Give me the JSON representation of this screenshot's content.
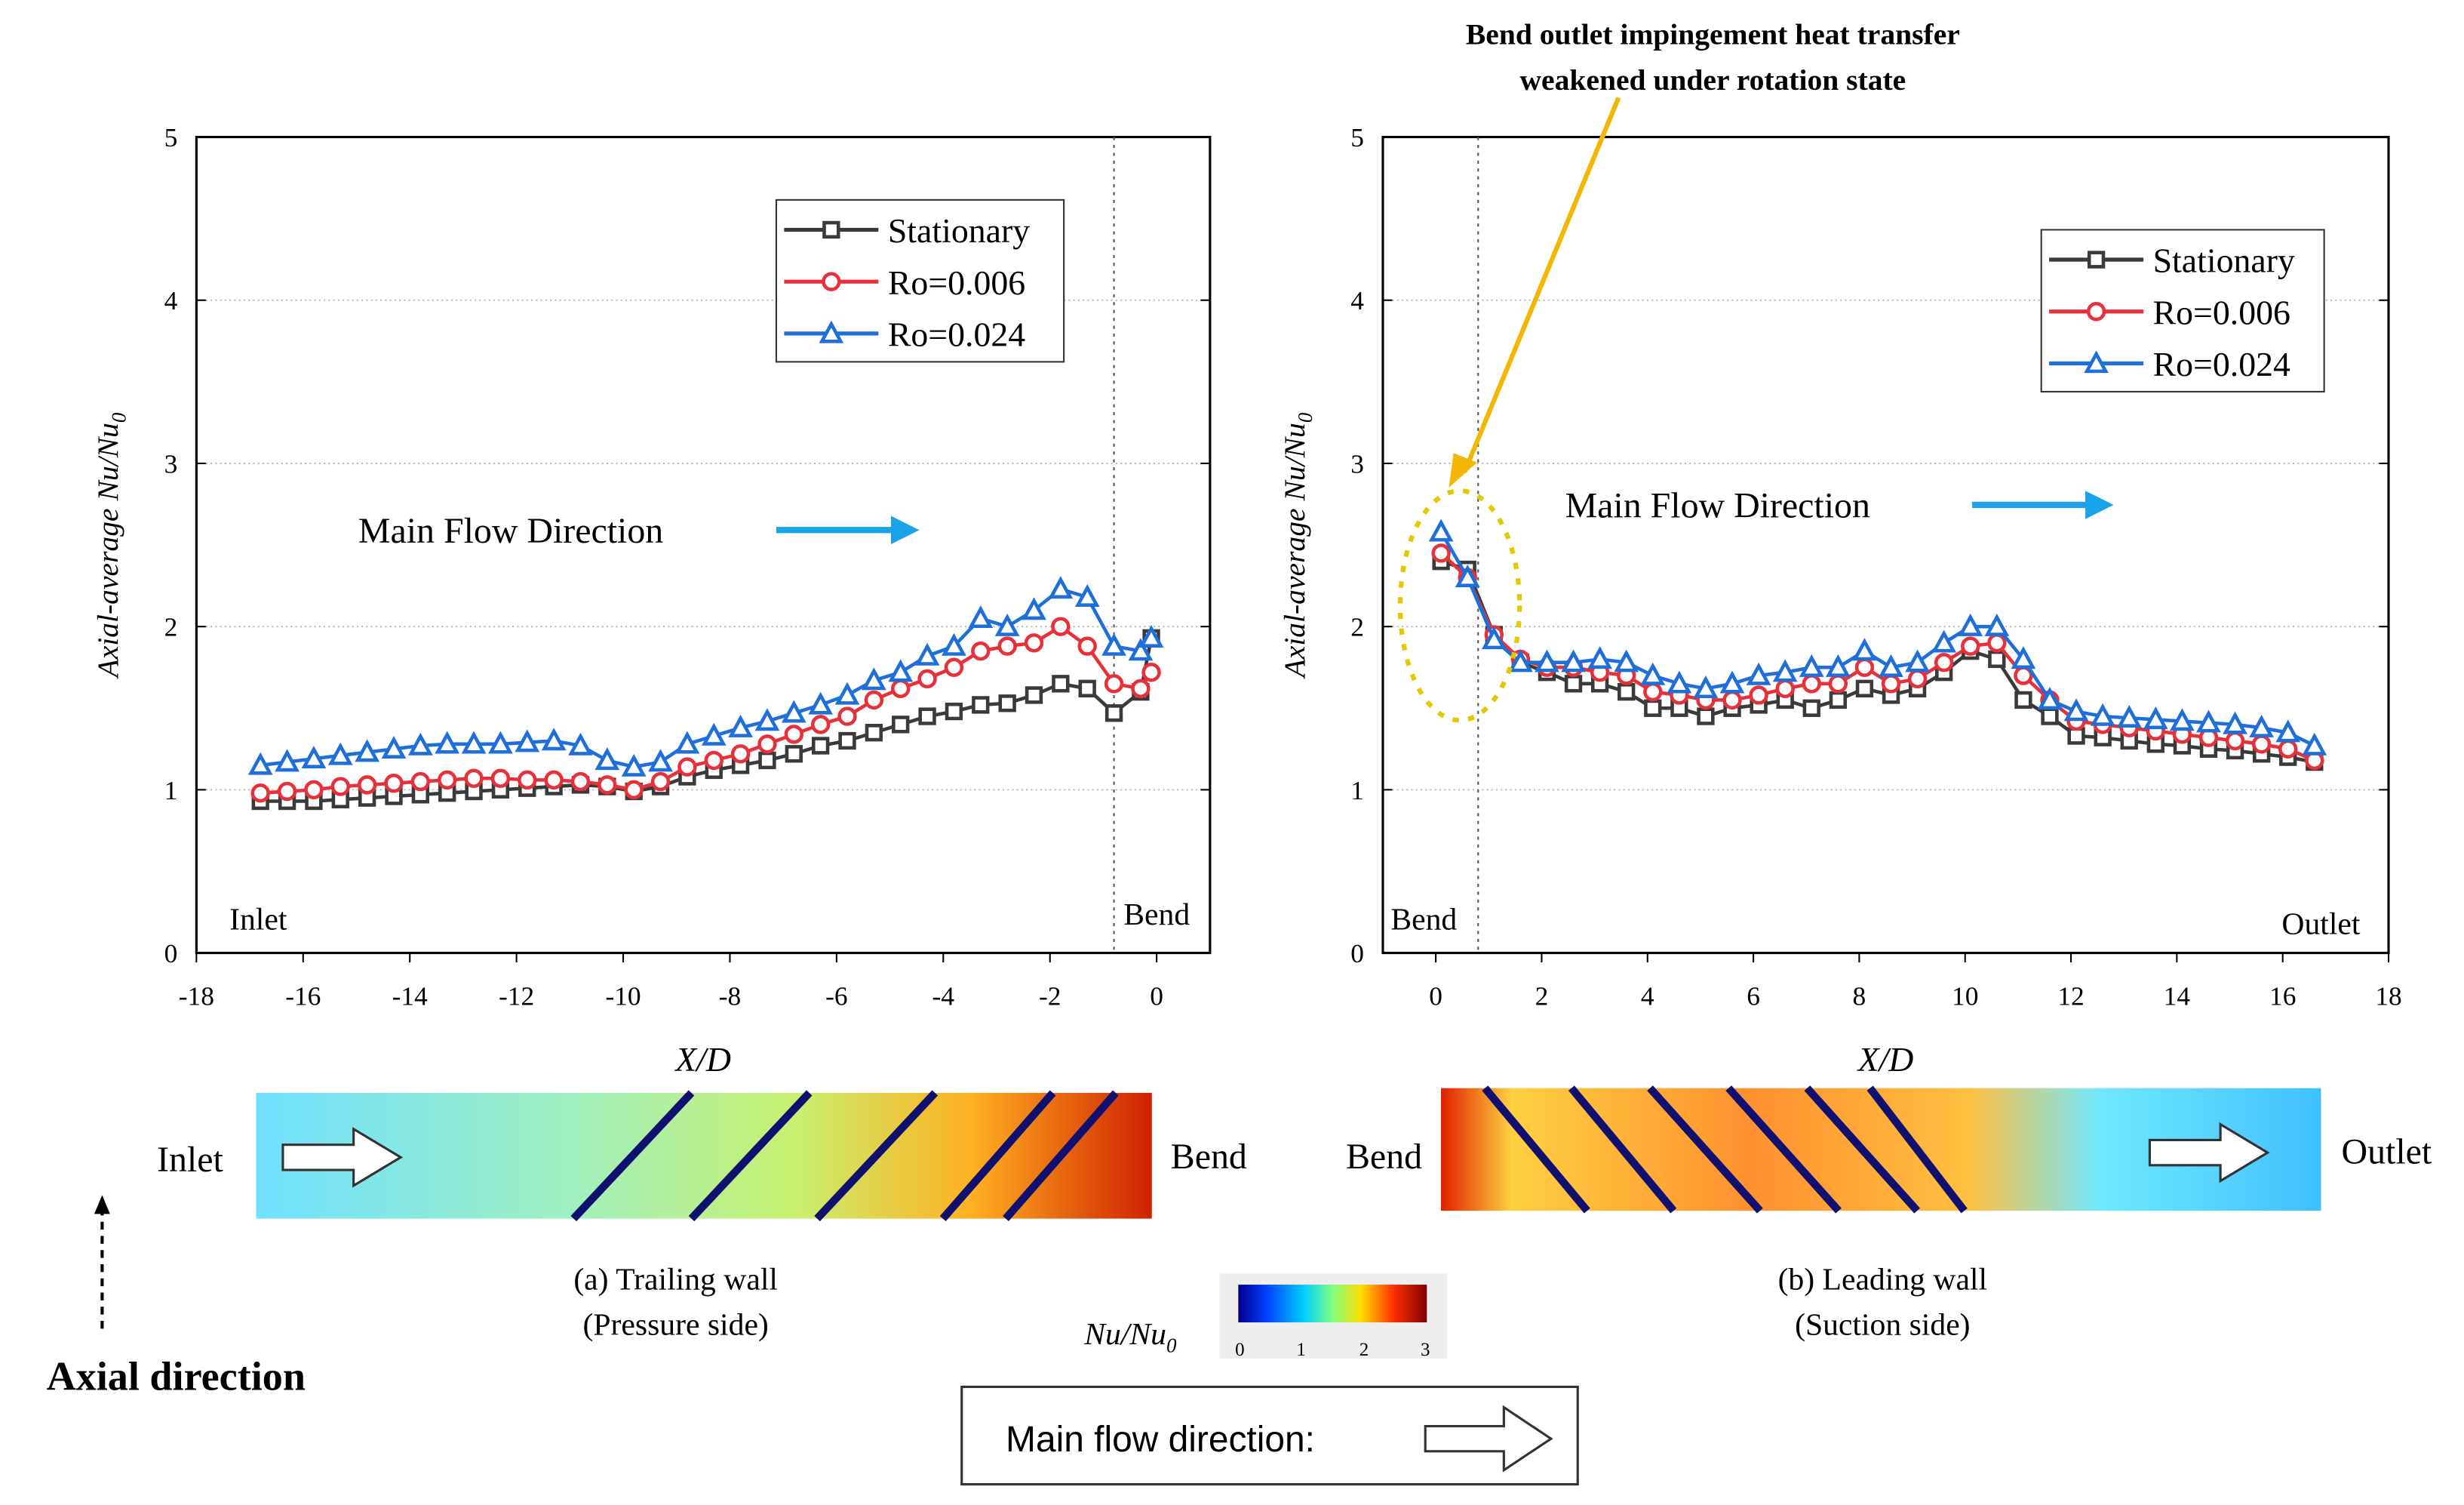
{
  "annotation": {
    "line1": "Bend outlet impingement heat transfer",
    "line2": "weakened under rotation state",
    "color": "#f2b705"
  },
  "colors": {
    "Stationary": "#3a3a3a",
    "Ro=0.006": "#e8303a",
    "Ro=0.024": "#1e6fd9",
    "flow_arrow": "#1aa3e8"
  },
  "chart_data": [
    {
      "type": "line",
      "xlabel": "X/D",
      "ylabel": "Axial-average Nu/Nu",
      "ylabel_sub": "0",
      "xlim": [
        -18,
        1
      ],
      "ylim": [
        0,
        5
      ],
      "xticks": [
        -18,
        -16,
        -14,
        -12,
        -10,
        -8,
        -6,
        -4,
        -2,
        0
      ],
      "yticks": [
        0,
        1,
        2,
        3,
        4,
        5
      ],
      "grid": true,
      "legend": "top-right",
      "text_main_flow": "Main Flow Direction",
      "left_label": "Inlet",
      "right_label": "Bend",
      "vline_x": -0.8,
      "x": [
        -16.8,
        -16.3,
        -15.8,
        -15.3,
        -14.8,
        -14.3,
        -13.8,
        -13.3,
        -12.8,
        -12.3,
        -11.8,
        -11.3,
        -10.8,
        -10.3,
        -9.8,
        -9.3,
        -8.8,
        -8.3,
        -7.8,
        -7.3,
        -6.8,
        -6.3,
        -5.8,
        -5.3,
        -4.8,
        -4.3,
        -3.8,
        -3.3,
        -2.8,
        -2.3,
        -1.8,
        -1.3,
        -0.8,
        -0.3,
        -0.1
      ],
      "series": [
        {
          "name": "Stationary",
          "marker": "square",
          "values": [
            0.93,
            0.93,
            0.93,
            0.94,
            0.95,
            0.96,
            0.97,
            0.98,
            0.99,
            1.0,
            1.01,
            1.02,
            1.03,
            1.02,
            0.99,
            1.02,
            1.08,
            1.12,
            1.15,
            1.18,
            1.22,
            1.27,
            1.3,
            1.35,
            1.4,
            1.45,
            1.48,
            1.52,
            1.53,
            1.58,
            1.65,
            1.62,
            1.47,
            1.6,
            1.93
          ]
        },
        {
          "name": "Ro=0.006",
          "marker": "circle",
          "values": [
            0.98,
            0.99,
            1.0,
            1.02,
            1.03,
            1.04,
            1.05,
            1.06,
            1.07,
            1.07,
            1.06,
            1.06,
            1.05,
            1.03,
            1.0,
            1.05,
            1.14,
            1.18,
            1.22,
            1.28,
            1.34,
            1.4,
            1.45,
            1.55,
            1.62,
            1.68,
            1.75,
            1.85,
            1.88,
            1.9,
            2.0,
            1.88,
            1.65,
            1.62,
            1.72
          ]
        },
        {
          "name": "Ro=0.024",
          "marker": "triangle",
          "values": [
            1.15,
            1.17,
            1.19,
            1.21,
            1.23,
            1.25,
            1.27,
            1.28,
            1.28,
            1.28,
            1.29,
            1.3,
            1.27,
            1.18,
            1.14,
            1.17,
            1.28,
            1.33,
            1.38,
            1.42,
            1.47,
            1.52,
            1.58,
            1.67,
            1.72,
            1.82,
            1.88,
            2.05,
            2.0,
            2.1,
            2.23,
            2.18,
            1.88,
            1.85,
            1.93
          ]
        }
      ],
      "caption1": "(a) Trailing wall",
      "caption2": "(Pressure side)",
      "map_left": "Inlet",
      "map_right": "Bend"
    },
    {
      "type": "line",
      "xlabel": "X/D",
      "ylabel": "Axial-average Nu/Nu",
      "ylabel_sub": "0",
      "xlim": [
        -1,
        18
      ],
      "ylim": [
        0,
        5
      ],
      "xticks": [
        0,
        2,
        4,
        6,
        8,
        10,
        12,
        14,
        16,
        18
      ],
      "yticks": [
        0,
        1,
        2,
        3,
        4,
        5
      ],
      "grid": true,
      "legend": "top-right",
      "text_main_flow": "Main Flow Direction",
      "left_label": "Bend",
      "right_label": "Outlet",
      "vline_x": 0.8,
      "x": [
        0.1,
        0.6,
        1.1,
        1.6,
        2.1,
        2.6,
        3.1,
        3.6,
        4.1,
        4.6,
        5.1,
        5.6,
        6.1,
        6.6,
        7.1,
        7.6,
        8.1,
        8.6,
        9.1,
        9.6,
        10.1,
        10.6,
        11.1,
        11.6,
        12.1,
        12.6,
        13.1,
        13.6,
        14.1,
        14.6,
        15.1,
        15.6,
        16.1,
        16.6
      ],
      "series": [
        {
          "name": "Stationary",
          "marker": "square",
          "values": [
            2.4,
            2.35,
            1.95,
            1.78,
            1.72,
            1.65,
            1.65,
            1.6,
            1.5,
            1.5,
            1.45,
            1.5,
            1.52,
            1.55,
            1.5,
            1.55,
            1.62,
            1.58,
            1.62,
            1.72,
            1.85,
            1.8,
            1.55,
            1.45,
            1.33,
            1.32,
            1.3,
            1.28,
            1.27,
            1.25,
            1.24,
            1.22,
            1.2,
            1.17
          ]
        },
        {
          "name": "Ro=0.006",
          "marker": "circle",
          "values": [
            2.45,
            2.3,
            1.95,
            1.8,
            1.75,
            1.75,
            1.72,
            1.7,
            1.6,
            1.58,
            1.55,
            1.55,
            1.58,
            1.62,
            1.65,
            1.65,
            1.75,
            1.65,
            1.68,
            1.78,
            1.88,
            1.9,
            1.7,
            1.55,
            1.42,
            1.4,
            1.38,
            1.36,
            1.34,
            1.32,
            1.3,
            1.28,
            1.25,
            1.18
          ]
        },
        {
          "name": "Ro=0.024",
          "marker": "triangle",
          "values": [
            2.58,
            2.3,
            1.92,
            1.78,
            1.78,
            1.78,
            1.8,
            1.78,
            1.7,
            1.65,
            1.62,
            1.65,
            1.7,
            1.72,
            1.75,
            1.75,
            1.85,
            1.75,
            1.78,
            1.9,
            2.0,
            2.0,
            1.8,
            1.55,
            1.48,
            1.45,
            1.44,
            1.43,
            1.42,
            1.41,
            1.4,
            1.38,
            1.35,
            1.27
          ]
        }
      ],
      "caption1": "(b) Leading  wall",
      "caption2": "(Suction side)",
      "map_left": "Bend",
      "map_right": "Outlet"
    }
  ],
  "colorbar": {
    "label": "Nu/Nu",
    "label_sub": "0",
    "ticks": [
      "0",
      "1",
      "2",
      "3"
    ]
  },
  "axial_direction": "Axial direction",
  "flow_box": "Main flow  direction:"
}
